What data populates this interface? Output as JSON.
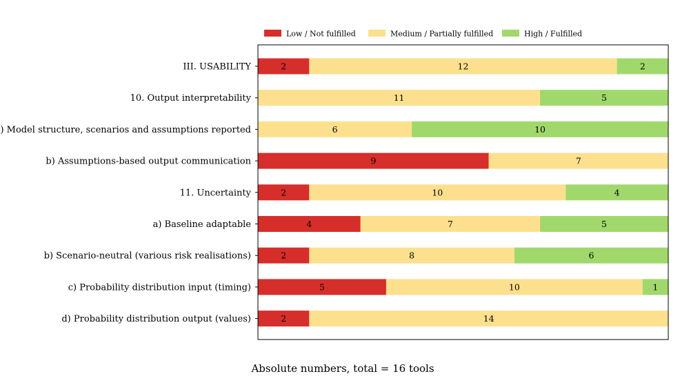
{
  "chart_data": {
    "type": "bar",
    "orientation": "horizontal",
    "stacked": true,
    "title": "",
    "xlabel": "Absolute numbers, total = 16 tools",
    "ylabel": "",
    "xlim": [
      0,
      16
    ],
    "grid": false,
    "legend_placement": "top",
    "categories": [
      "III. USABILITY",
      "10. Output interpretability",
      "a) Model structure, scenarios and assumptions reported",
      "b) Assumptions-based output communication",
      "11. Uncertainty",
      "a) Baseline adaptable",
      "b) Scenario-neutral (various risk realisations)",
      "c) Probability distribution input (timing)",
      "d) Probability distribution output (values)"
    ],
    "series": [
      {
        "name": "Low / Not fulfilled",
        "color": "#d62e2b",
        "values": [
          2,
          0,
          0,
          9,
          2,
          4,
          2,
          5,
          2
        ]
      },
      {
        "name": "Medium / Partially fulfilled",
        "color": "#fde08e",
        "values": [
          12,
          11,
          6,
          7,
          10,
          7,
          8,
          10,
          14
        ]
      },
      {
        "name": "High / Fulfilled",
        "color": "#a1d86c",
        "values": [
          2,
          5,
          10,
          0,
          4,
          5,
          6,
          1,
          0
        ]
      }
    ]
  }
}
